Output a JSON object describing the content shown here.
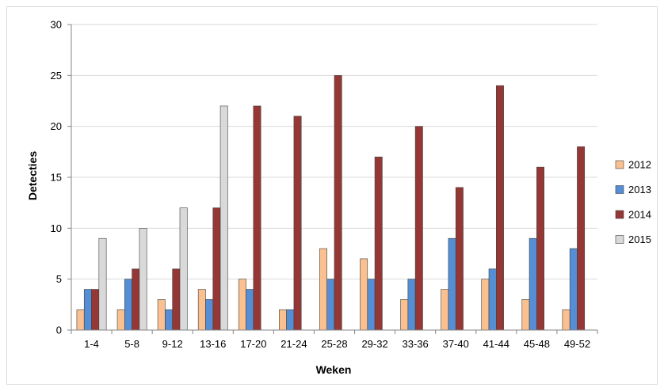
{
  "chart_data": {
    "type": "bar",
    "title": "",
    "xlabel": "Weken",
    "ylabel": "Detecties",
    "ylim": [
      0,
      30
    ],
    "yticks": [
      0,
      5,
      10,
      15,
      20,
      25,
      30
    ],
    "grid": true,
    "legend_position": "right",
    "categories": [
      "1-4",
      "5-8",
      "9-12",
      "13-16",
      "17-20",
      "21-24",
      "25-28",
      "29-32",
      "33-36",
      "37-40",
      "41-44",
      "45-48",
      "49-52"
    ],
    "series": [
      {
        "name": "2012",
        "color": "#FAC090",
        "values": [
          2,
          2,
          3,
          4,
          5,
          2,
          8,
          7,
          3,
          4,
          5,
          3,
          2
        ]
      },
      {
        "name": "2013",
        "color": "#558ED5",
        "values": [
          4,
          5,
          2,
          3,
          4,
          2,
          5,
          5,
          5,
          9,
          6,
          9,
          8
        ]
      },
      {
        "name": "2014",
        "color": "#953735",
        "values": [
          4,
          6,
          6,
          12,
          22,
          21,
          25,
          17,
          20,
          14,
          24,
          16,
          18
        ]
      },
      {
        "name": "2015",
        "color": "#D9D9D9",
        "values": [
          9,
          10,
          12,
          22,
          null,
          null,
          null,
          null,
          null,
          null,
          null,
          null,
          null
        ]
      }
    ]
  }
}
